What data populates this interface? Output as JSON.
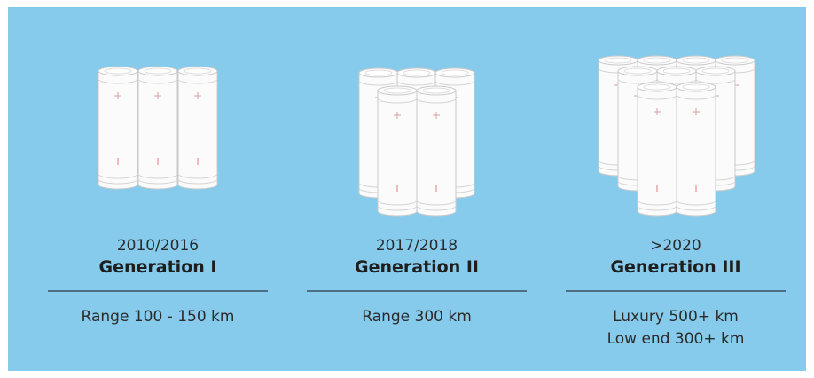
{
  "columns": [
    {
      "period": "2010/2016",
      "generation": "Generation I",
      "range": [
        "Range 100 - 150 km"
      ]
    },
    {
      "period": "2017/2018",
      "generation": "Generation II",
      "range": [
        "Range 300 km"
      ]
    },
    {
      "period": ">2020",
      "generation": "Generation III",
      "range": [
        "Luxury 500+ km",
        "Low end 300+ km"
      ]
    }
  ]
}
